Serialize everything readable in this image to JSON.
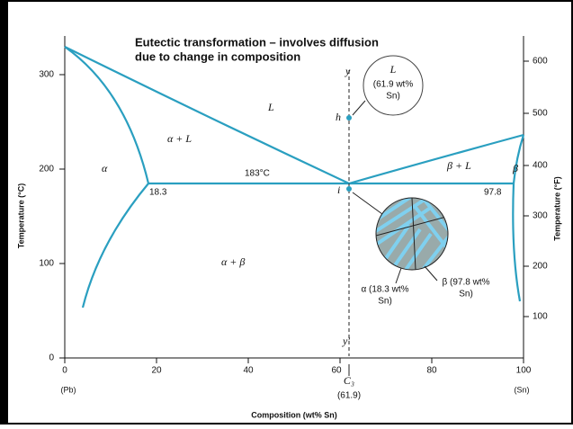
{
  "header": {
    "title": [
      "Eutectic transformation – involves diffusion",
      "due to change in composition"
    ]
  },
  "axes": {
    "left": {
      "title": "Temperature (°C)",
      "ticks": [
        "0",
        "100",
        "200",
        "300"
      ]
    },
    "right": {
      "title": "Temperature (°F)",
      "ticks": [
        "100",
        "200",
        "300",
        "400",
        "500",
        "600"
      ]
    },
    "bottom": {
      "title": "Composition (wt% Sn)",
      "ticks": [
        "0",
        "20",
        "40",
        "60",
        "80",
        "100"
      ],
      "ends": [
        "(Pb)",
        "(Sn)"
      ]
    }
  },
  "regions": {
    "liquid": "L",
    "alpha": "α",
    "alpha_liquid": "α + L",
    "beta_liquid": "β + L",
    "beta": "β",
    "alpha_beta": "α + β"
  },
  "points": {
    "eutectic_temp": "183°C",
    "alpha_comp": "18.3",
    "beta_comp": "97.8",
    "h": "h",
    "i": "i",
    "y": "y",
    "y_prime": "y′"
  },
  "callouts": {
    "liquid": [
      "L",
      "(61.9 wt%",
      "Sn)"
    ],
    "alpha": [
      "α (18.3 wt%",
      "Sn)"
    ],
    "beta": [
      "β (97.8 wt%",
      "Sn)"
    ]
  },
  "composition": {
    "symbol": "C₃",
    "value": "(61.9)"
  }
}
